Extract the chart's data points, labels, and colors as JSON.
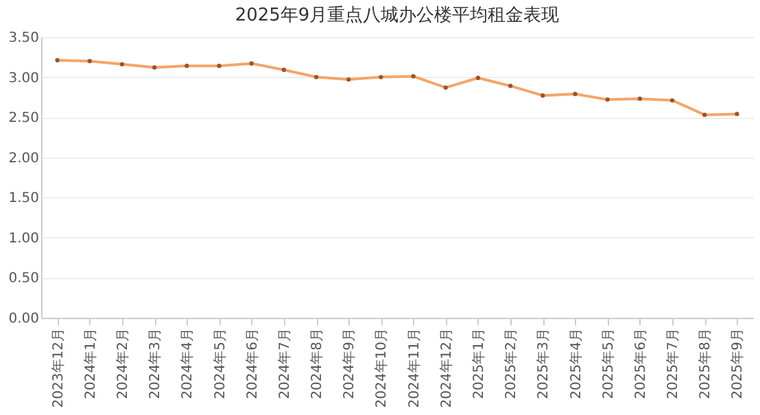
{
  "chart_data": {
    "type": "line",
    "title": "2025年9月重点八城办公楼平均租金表现",
    "categories": [
      "2023年12月",
      "2024年1月",
      "2024年2月",
      "2024年3月",
      "2024年4月",
      "2024年5月",
      "2024年6月",
      "2024年7月",
      "2024年8月",
      "2024年9月",
      "2024年10月",
      "2024年11月",
      "2024年12月",
      "2025年1月",
      "2025年2月",
      "2025年3月",
      "2025年4月",
      "2025年5月",
      "2025年6月",
      "2025年7月",
      "2025年8月",
      "2025年9月"
    ],
    "series": [
      {
        "color": "#f2a66a",
        "values": [
          3.21,
          3.2,
          3.16,
          3.12,
          3.14,
          3.14,
          3.17,
          3.09,
          3.0,
          2.97,
          3.0,
          3.01,
          2.87,
          2.99,
          2.89,
          2.77,
          2.79,
          2.72,
          2.73,
          2.71,
          2.53,
          2.54
        ]
      }
    ],
    "ylim": [
      0,
      3.5
    ],
    "yticks": [
      {
        "value": 0,
        "label": "0.00"
      },
      {
        "value": 0.5,
        "label": "0.50"
      },
      {
        "value": 1,
        "label": "1.00"
      },
      {
        "value": 1.5,
        "label": "1.50"
      },
      {
        "value": 2,
        "label": "2.00"
      },
      {
        "value": 2.5,
        "label": "2.50"
      },
      {
        "value": 3,
        "label": "3.00"
      },
      {
        "value": 3.5,
        "label": "3.50"
      }
    ],
    "grid": "y",
    "marker": "circle",
    "line_style": "solid"
  }
}
